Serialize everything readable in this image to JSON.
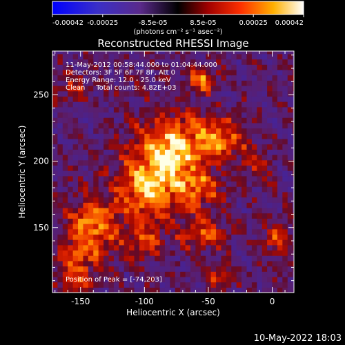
{
  "chart_data": {
    "type": "heatmap",
    "title": "Reconstructed RHESSI Image",
    "xlabel": "Heliocentric X (arcsec)",
    "ylabel": "Heliocentric Y (arcsec)",
    "xlim": [
      -172,
      17
    ],
    "ylim": [
      101,
      283
    ],
    "x_ticks": [
      -150,
      -100,
      -50,
      0
    ],
    "y_ticks": [
      150,
      200,
      250
    ],
    "colorbar": {
      "range": [
        -0.00042,
        0.00042
      ],
      "ticks": [
        "-0.00042",
        "-0.00025",
        "-8.5e-05",
        "8.5e-05",
        "0.00025",
        "0.00042"
      ],
      "units_label": "(photons cm⁻² s⁻¹ asec⁻²)"
    },
    "annotations": [
      "11-May-2012 00:58:44.000 to 01:04:44.000",
      "Detectors: 3F 5F 6F 7F 8F, Att 0",
      "Energy Range: 12.0 - 25.0 keV",
      "Clean     Total counts: 4.82E+03"
    ],
    "peak_label": "Position of Peak = [-74,203]",
    "peak": [
      -74,
      203
    ],
    "sources": [
      {
        "x": -78,
        "y": 210,
        "sx": 20,
        "sy": 18,
        "amp": 1.0
      },
      {
        "x": -98,
        "y": 178,
        "sx": 16,
        "sy": 18,
        "amp": 0.85
      },
      {
        "x": -58,
        "y": 178,
        "sx": 12,
        "sy": 10,
        "amp": 0.65
      },
      {
        "x": -40,
        "y": 218,
        "sx": 12,
        "sy": 10,
        "amp": 0.7
      },
      {
        "x": -55,
        "y": 262,
        "sx": 8,
        "sy": 6,
        "amp": 0.85
      },
      {
        "x": -140,
        "y": 150,
        "sx": 14,
        "sy": 16,
        "amp": 0.85
      },
      {
        "x": -155,
        "y": 118,
        "sx": 10,
        "sy": 12,
        "amp": 0.6
      },
      {
        "x": -55,
        "y": 145,
        "sx": 14,
        "sy": 8,
        "amp": 0.55
      },
      {
        "x": -100,
        "y": 138,
        "sx": 10,
        "sy": 8,
        "amp": 0.5
      },
      {
        "x": 5,
        "y": 140,
        "sx": 8,
        "sy": 8,
        "amp": 0.55
      },
      {
        "x": -40,
        "y": 112,
        "sx": 10,
        "sy": 6,
        "amp": 0.45
      },
      {
        "x": -155,
        "y": 255,
        "sx": 10,
        "sy": 8,
        "amp": 0.35
      },
      {
        "x": -15,
        "y": 200,
        "sx": 8,
        "sy": 10,
        "amp": 0.4
      }
    ]
  },
  "footer": {
    "timestamp": "10-May-2022 18:03"
  }
}
